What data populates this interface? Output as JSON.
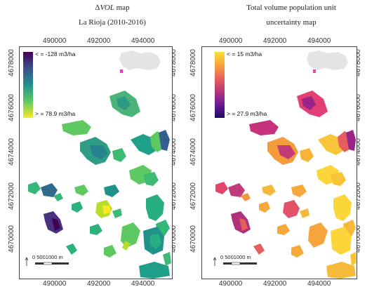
{
  "left": {
    "title_line1_prefix": "Δ",
    "title_line1_italic": "VOL",
    "title_line1_suffix": " map",
    "title_line2": "La Rioja (2010-2016)",
    "legend_top": "< = -128 m3/ha",
    "legend_bottom": "> = 78.9 m3/ha",
    "gradient": [
      "#440154",
      "#3b528b",
      "#21918c",
      "#5ec962",
      "#fde725"
    ]
  },
  "right": {
    "title_line1": "Total volume population unit",
    "title_line2": "uncertainty map",
    "legend_top": "< = 15 m3/ha",
    "legend_bottom": "> = 27.9 m3/ha",
    "gradient": [
      "#fcdf38",
      "#f9a33b",
      "#e8615b",
      "#b63679",
      "#6a1b9a",
      "#1b0c60"
    ]
  },
  "x_ticks": [
    "490000",
    "492000",
    "494000"
  ],
  "y_ticks": [
    "4678000",
    "4676000",
    "4674000",
    "4672000",
    "4670000"
  ],
  "scalebar": {
    "text": "0  5001000 m",
    "north": "N"
  },
  "inset": {
    "marker_color": "#ff33cc"
  }
}
